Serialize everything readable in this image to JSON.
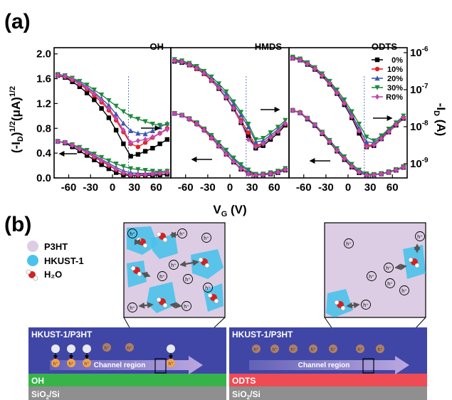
{
  "panel_a": {
    "label": "(a)",
    "y_left_label": "(-I_D)^1/2 (μA)^1/2",
    "y_right_label": "-I_D (A)",
    "x_label": "V_G (V)",
    "y_left_ticks": [
      "2.0",
      "1.6",
      "1.2",
      "0.8",
      "0.4",
      "0.0"
    ],
    "y_right_ticks": [
      "10^-6",
      "10^-7",
      "10^-8",
      "10^-9"
    ],
    "x_ticks": [
      "-60",
      "-30",
      "0",
      "30",
      "60"
    ],
    "subplot_titles": [
      "OH",
      "HMDS",
      ""
    ],
    "legend_title": "ODTS",
    "legend": [
      {
        "name": "0%",
        "color": "#000000",
        "marker": "square"
      },
      {
        "name": "10%",
        "color": "#e8211f",
        "marker": "circle"
      },
      {
        "name": "20%",
        "color": "#3a58b0",
        "marker": "triangle-up"
      },
      {
        "name": "30%",
        "color": "#1f8a3c",
        "marker": "triangle-down"
      },
      {
        "name": "R0%",
        "color": "#c547b4",
        "marker": "diamond"
      }
    ]
  },
  "chart_data": {
    "type": "line",
    "x": [
      -75,
      -65,
      -55,
      -45,
      -35,
      -25,
      -15,
      -5,
      5,
      15,
      25,
      35,
      45,
      55,
      65,
      75
    ],
    "ylim": [
      0,
      2.1
    ],
    "xlim": [
      -80,
      80
    ],
    "subplots": [
      {
        "title": "OH",
        "series": [
          {
            "name": "0%",
            "values": [
              1.65,
              1.62,
              1.55,
              1.47,
              1.37,
              1.26,
              1.12,
              0.97,
              0.77,
              0.55,
              0.35,
              0.38,
              0.43,
              0.48,
              0.55,
              0.62
            ]
          },
          {
            "name": "10%",
            "values": [
              1.65,
              1.63,
              1.58,
              1.51,
              1.43,
              1.33,
              1.22,
              1.09,
              0.93,
              0.74,
              0.55,
              0.5,
              0.57,
              0.65,
              0.72,
              0.8
            ]
          },
          {
            "name": "20%",
            "values": [
              1.66,
              1.64,
              1.6,
              1.54,
              1.47,
              1.38,
              1.28,
              1.17,
              1.03,
              0.88,
              0.76,
              0.72,
              0.71,
              0.76,
              0.82,
              0.88
            ]
          },
          {
            "name": "30%",
            "values": [
              1.67,
              1.65,
              1.61,
              1.56,
              1.5,
              1.42,
              1.34,
              1.25,
              1.16,
              1.07,
              0.99,
              0.95,
              0.91,
              0.87,
              0.85,
              0.86
            ]
          },
          {
            "name": "R0%",
            "values": [
              1.66,
              1.64,
              1.59,
              1.52,
              1.45,
              1.36,
              1.25,
              1.12,
              0.96,
              0.77,
              0.57,
              0.6,
              0.62,
              0.66,
              0.72,
              0.78
            ]
          }
        ]
      },
      {
        "title": "HMDS",
        "series": [
          {
            "name": "0%",
            "values": [
              1.88,
              1.86,
              1.82,
              1.76,
              1.68,
              1.57,
              1.44,
              1.29,
              1.11,
              0.89,
              0.68,
              0.48,
              0.52,
              0.62,
              0.72,
              0.85
            ]
          },
          {
            "name": "10%",
            "values": [
              1.89,
              1.87,
              1.82,
              1.76,
              1.68,
              1.57,
              1.45,
              1.3,
              1.13,
              0.93,
              0.73,
              0.52,
              0.56,
              0.66,
              0.75,
              0.87
            ]
          },
          {
            "name": "20%",
            "values": [
              1.9,
              1.88,
              1.84,
              1.78,
              1.7,
              1.6,
              1.48,
              1.35,
              1.19,
              1.01,
              0.82,
              0.58,
              0.6,
              0.69,
              0.78,
              0.9
            ]
          },
          {
            "name": "30%",
            "values": [
              1.91,
              1.89,
              1.85,
              1.8,
              1.72,
              1.63,
              1.52,
              1.39,
              1.23,
              1.06,
              0.87,
              0.62,
              0.64,
              0.73,
              0.82,
              0.93
            ]
          },
          {
            "name": "R0%",
            "values": [
              1.89,
              1.87,
              1.83,
              1.77,
              1.69,
              1.58,
              1.45,
              1.3,
              1.12,
              0.9,
              0.62,
              0.5,
              0.55,
              0.65,
              0.75,
              0.88
            ]
          }
        ]
      },
      {
        "title": "",
        "series": [
          {
            "name": "0%",
            "values": [
              1.93,
              1.9,
              1.83,
              1.75,
              1.64,
              1.51,
              1.36,
              1.18,
              0.97,
              0.72,
              0.5,
              0.52,
              0.63,
              0.74,
              0.85,
              0.96
            ]
          },
          {
            "name": "10%",
            "values": [
              1.93,
              1.91,
              1.84,
              1.76,
              1.65,
              1.52,
              1.37,
              1.2,
              0.99,
              0.76,
              0.52,
              0.54,
              0.64,
              0.75,
              0.86,
              0.97
            ]
          },
          {
            "name": "20%",
            "values": [
              1.94,
              1.91,
              1.85,
              1.77,
              1.67,
              1.54,
              1.39,
              1.22,
              1.02,
              0.8,
              0.58,
              0.57,
              0.66,
              0.77,
              0.88,
              0.99
            ]
          },
          {
            "name": "30%",
            "values": [
              1.95,
              1.92,
              1.86,
              1.78,
              1.68,
              1.56,
              1.42,
              1.26,
              1.07,
              0.87,
              0.66,
              0.6,
              0.68,
              0.79,
              0.89,
              1.0
            ]
          },
          {
            "name": "R0%",
            "values": [
              1.93,
              1.9,
              1.84,
              1.76,
              1.65,
              1.52,
              1.37,
              1.2,
              0.99,
              0.76,
              0.5,
              0.53,
              0.63,
              0.74,
              0.86,
              0.97
            ]
          }
        ]
      }
    ]
  },
  "panel_b": {
    "label": "(b)",
    "legend": [
      {
        "name": "P3HT",
        "color": "#dccde4"
      },
      {
        "name": "HKUST-1",
        "color": "#4ac2ea"
      },
      {
        "name": "H₂O",
        "color": "#d32121"
      }
    ],
    "hole_label": "h⁺",
    "left": {
      "film_label": "HKUST-1/P3HT",
      "channel_label": "Channel region",
      "dielectric_label": "OH",
      "substrate_label": "SiO₂/Si",
      "film_color": "#4046a6",
      "dielectric_color": "#37b449",
      "substrate_color": "#8f8f8f"
    },
    "right": {
      "film_label": "HKUST-1/P3HT",
      "channel_label": "Channel region",
      "dielectric_label": "ODTS",
      "substrate_label": "SiO₂/Si",
      "film_color": "#4046a6",
      "dielectric_color": "#ef4b55",
      "substrate_color": "#8f8f8f"
    }
  }
}
